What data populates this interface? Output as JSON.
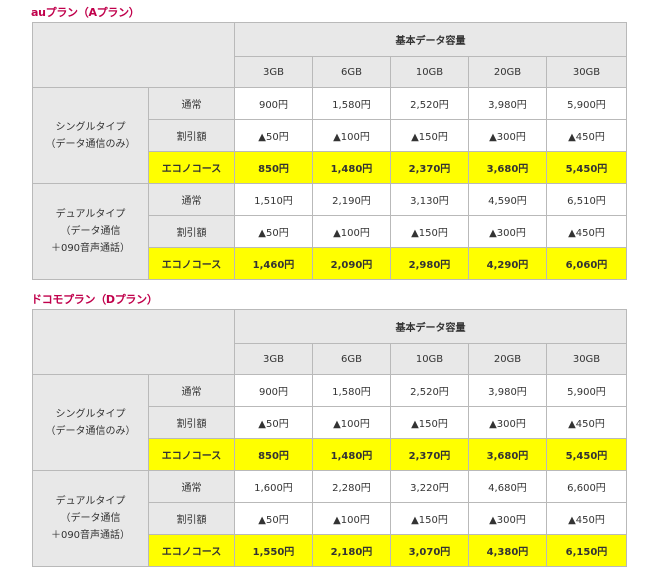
{
  "plans": [
    {
      "title": "auプラン（Aプラン）",
      "header": "基本データ容量",
      "capacities": [
        "3GB",
        "6GB",
        "10GB",
        "20GB",
        "30GB"
      ],
      "groups": [
        {
          "category_lines": [
            "シングルタイプ",
            "（データ通信のみ）"
          ],
          "rows": [
            {
              "label": "通常",
              "values": [
                "900円",
                "1,580円",
                "2,520円",
                "3,980円",
                "5,900円"
              ]
            },
            {
              "label": "割引額",
              "values": [
                "▲50円",
                "▲100円",
                "▲150円",
                "▲300円",
                "▲450円"
              ]
            },
            {
              "label": "エコノコース",
              "values": [
                "850円",
                "1,480円",
                "2,370円",
                "3,680円",
                "5,450円"
              ]
            }
          ]
        },
        {
          "category_lines": [
            "デュアルタイプ",
            "（データ通信",
            "＋090音声通話）"
          ],
          "rows": [
            {
              "label": "通常",
              "values": [
                "1,510円",
                "2,190円",
                "3,130円",
                "4,590円",
                "6,510円"
              ]
            },
            {
              "label": "割引額",
              "values": [
                "▲50円",
                "▲100円",
                "▲150円",
                "▲300円",
                "▲450円"
              ]
            },
            {
              "label": "エコノコース",
              "values": [
                "1,460円",
                "2,090円",
                "2,980円",
                "4,290円",
                "6,060円"
              ]
            }
          ]
        }
      ]
    },
    {
      "title": "ドコモプラン（Dプラン）",
      "header": "基本データ容量",
      "capacities": [
        "3GB",
        "6GB",
        "10GB",
        "20GB",
        "30GB"
      ],
      "groups": [
        {
          "category_lines": [
            "シングルタイプ",
            "（データ通信のみ）"
          ],
          "rows": [
            {
              "label": "通常",
              "values": [
                "900円",
                "1,580円",
                "2,520円",
                "3,980円",
                "5,900円"
              ]
            },
            {
              "label": "割引額",
              "values": [
                "▲50円",
                "▲100円",
                "▲150円",
                "▲300円",
                "▲450円"
              ]
            },
            {
              "label": "エコノコース",
              "values": [
                "850円",
                "1,480円",
                "2,370円",
                "3,680円",
                "5,450円"
              ]
            }
          ]
        },
        {
          "category_lines": [
            "デュアルタイプ",
            "（データ通信",
            "＋090音声通話）"
          ],
          "rows": [
            {
              "label": "通常",
              "values": [
                "1,600円",
                "2,280円",
                "3,220円",
                "4,680円",
                "6,600円"
              ]
            },
            {
              "label": "割引額",
              "values": [
                "▲50円",
                "▲100円",
                "▲150円",
                "▲300円",
                "▲450円"
              ]
            },
            {
              "label": "エコノコース",
              "values": [
                "1,550円",
                "2,180円",
                "3,070円",
                "4,380円",
                "6,150円"
              ]
            }
          ]
        }
      ]
    }
  ]
}
